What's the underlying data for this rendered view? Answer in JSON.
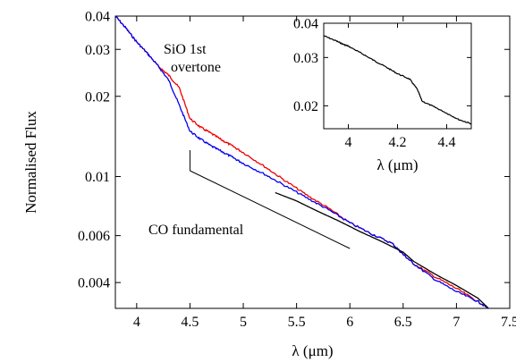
{
  "chart_data": [
    {
      "type": "line",
      "role": "main",
      "xlabel": "λ (μm)",
      "ylabel": "Normalised Flux",
      "xlim": [
        3.8,
        7.5
      ],
      "ylim": [
        0.0032,
        0.04
      ],
      "y_scale": "log",
      "xticks": [
        4,
        4.5,
        5,
        5.5,
        6,
        6.5,
        7,
        7.5
      ],
      "xtick_labels": [
        "4",
        "4.5",
        "5",
        "5.5",
        "6",
        "6.5",
        "7",
        "7.5"
      ],
      "yticks": [
        0.004,
        0.006,
        0.01,
        0.02,
        0.03,
        0.04
      ],
      "ytick_labels": [
        "0.004",
        "0.006",
        "0.01",
        "0.02",
        "0.03",
        "0.04"
      ],
      "series": [
        {
          "color": "#ee0000",
          "x": [
            3.8,
            3.9,
            4.0,
            4.1,
            4.2,
            4.3,
            4.4,
            4.5,
            4.6,
            4.7,
            4.8,
            4.9,
            5.0,
            5.2,
            5.4,
            5.6,
            5.8,
            6.0,
            6.2,
            6.4,
            6.5,
            6.6,
            6.8,
            7.0,
            7.2,
            7.3
          ],
          "y": [
            0.04,
            0.036,
            0.032,
            0.029,
            0.026,
            0.024,
            0.0215,
            0.0165,
            0.0153,
            0.0145,
            0.0137,
            0.013,
            0.0123,
            0.0109,
            0.0096,
            0.0085,
            0.0076,
            0.0067,
            0.0061,
            0.0056,
            0.0051,
            0.0047,
            0.0042,
            0.0038,
            0.0034,
            0.0032
          ]
        },
        {
          "color": "#0000ee",
          "x": [
            3.8,
            3.9,
            4.0,
            4.1,
            4.2,
            4.3,
            4.4,
            4.5,
            4.6,
            4.7,
            4.8,
            4.9,
            5.0,
            5.2,
            5.4,
            5.6,
            5.8,
            6.0,
            6.2,
            6.4,
            6.5,
            6.6,
            6.8,
            7.0,
            7.2,
            7.3
          ],
          "y": [
            0.04,
            0.036,
            0.032,
            0.029,
            0.026,
            0.023,
            0.0185,
            0.0148,
            0.0138,
            0.013,
            0.0124,
            0.0118,
            0.0112,
            0.0102,
            0.0092,
            0.0083,
            0.0075,
            0.0067,
            0.0061,
            0.0056,
            0.0051,
            0.0047,
            0.0041,
            0.0037,
            0.0034,
            0.0032
          ]
        },
        {
          "color": "#000000",
          "x": [
            5.3,
            5.5,
            5.7,
            5.9,
            6.1,
            6.3,
            6.5,
            6.6,
            6.8,
            7.0,
            7.2,
            7.3
          ],
          "y": [
            0.0087,
            0.0081,
            0.0074,
            0.0068,
            0.0062,
            0.0057,
            0.0052,
            0.0048,
            0.0043,
            0.0039,
            0.0035,
            0.0032
          ]
        }
      ],
      "annotations": [
        {
          "text_lines": [
            "SiO 1st",
            "overtone"
          ]
        },
        {
          "text": "CO fundamental",
          "bracket_x": [
            4.5,
            6.0
          ]
        }
      ]
    },
    {
      "type": "line",
      "role": "inset",
      "xlabel": "λ (μm)",
      "xlim": [
        3.9,
        4.5
      ],
      "ylim": [
        0.0165,
        0.04
      ],
      "y_scale": "log",
      "xticks": [
        4,
        4.2,
        4.4
      ],
      "xtick_labels": [
        "4",
        "4.2",
        "4.4"
      ],
      "yticks": [
        0.02,
        0.03,
        0.04
      ],
      "ytick_labels": [
        "0.02",
        "0.03",
        "0.04"
      ],
      "series": [
        {
          "color": "#000000",
          "x": [
            3.9,
            3.95,
            3.98,
            4.0,
            4.05,
            4.1,
            4.15,
            4.2,
            4.25,
            4.28,
            4.3,
            4.35,
            4.4,
            4.45,
            4.5
          ],
          "y": [
            0.036,
            0.0345,
            0.0335,
            0.033,
            0.0312,
            0.0294,
            0.0278,
            0.0262,
            0.025,
            0.023,
            0.0208,
            0.0198,
            0.0188,
            0.0178,
            0.0172
          ]
        }
      ]
    }
  ]
}
